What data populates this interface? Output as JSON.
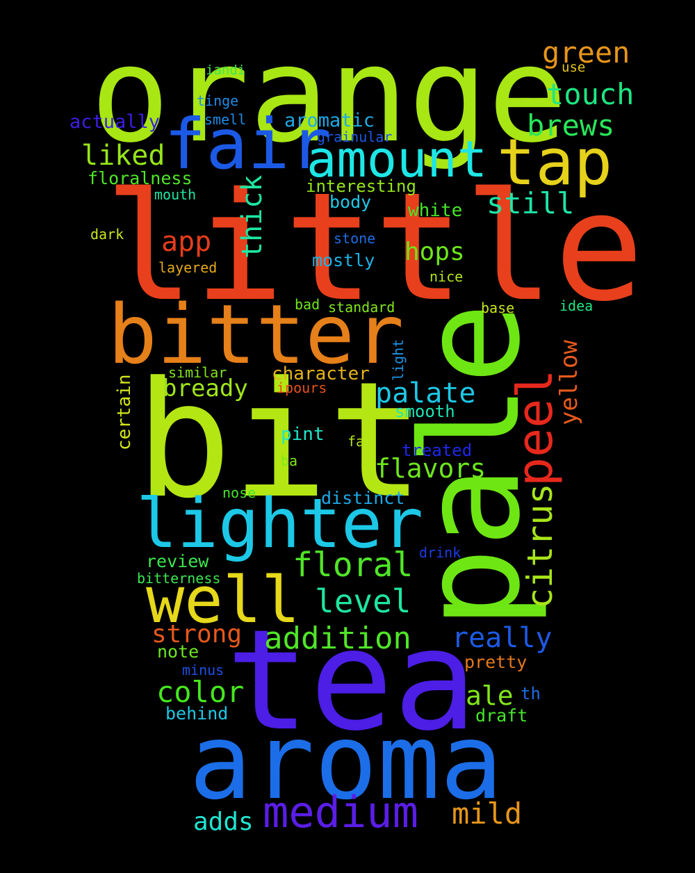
{
  "background": "#000000",
  "words": [
    {
      "text": "orange",
      "color": "#a8e614"
    },
    {
      "text": "little",
      "color": "#e8401c"
    },
    {
      "text": "bit",
      "color": "#b4e614"
    },
    {
      "text": "tea",
      "color": "#4c1ee6"
    },
    {
      "text": "pale",
      "color": "#6ee614"
    },
    {
      "text": "aroma",
      "color": "#1c6ee8"
    },
    {
      "text": "bitter",
      "color": "#e6801a"
    },
    {
      "text": "fair",
      "color": "#1c5ae6"
    },
    {
      "text": "amount",
      "color": "#1ee6e6"
    },
    {
      "text": "tap",
      "color": "#e6d21a"
    },
    {
      "text": "lighter",
      "color": "#1cc8e6"
    },
    {
      "text": "well",
      "color": "#e6d81a"
    },
    {
      "text": "medium",
      "color": "#5a1ee6"
    },
    {
      "text": "peel",
      "color": "#e6281c"
    },
    {
      "text": "citrus",
      "color": "#a8e61a"
    },
    {
      "text": "green",
      "color": "#e6961a"
    },
    {
      "text": "touch",
      "color": "#1ee682"
    },
    {
      "text": "brews",
      "color": "#28e65a"
    },
    {
      "text": "liked",
      "color": "#96e61a"
    },
    {
      "text": "still",
      "color": "#1ee6aa"
    },
    {
      "text": "app",
      "color": "#e63c1c"
    },
    {
      "text": "thick",
      "color": "#1ee6a0"
    },
    {
      "text": "hops",
      "color": "#6ee61a"
    },
    {
      "text": "floral",
      "color": "#50e628"
    },
    {
      "text": "level",
      "color": "#1ee6a0"
    },
    {
      "text": "palate",
      "color": "#1ec8e6"
    },
    {
      "text": "bready",
      "color": "#a0e61a"
    },
    {
      "text": "flavors",
      "color": "#6ee61e"
    },
    {
      "text": "addition",
      "color": "#50e628"
    },
    {
      "text": "strong",
      "color": "#e6581c"
    },
    {
      "text": "really",
      "color": "#1e5ae6"
    },
    {
      "text": "color",
      "color": "#46e61e"
    },
    {
      "text": "ale",
      "color": "#82e61a"
    },
    {
      "text": "mild",
      "color": "#e6961a"
    },
    {
      "text": "adds",
      "color": "#1ee6d2"
    },
    {
      "text": "yellow",
      "color": "#e65a1c"
    },
    {
      "text": "aromatic",
      "color": "#1eaae6"
    },
    {
      "text": "actually",
      "color": "#3c1ee6"
    },
    {
      "text": "floralness",
      "color": "#50e628"
    },
    {
      "text": "interesting",
      "color": "#96e61a"
    },
    {
      "text": "character",
      "color": "#e6b41a"
    },
    {
      "text": "certain",
      "color": "#d2e61a"
    },
    {
      "text": "white",
      "color": "#46e628"
    },
    {
      "text": "body",
      "color": "#1ec8e6"
    },
    {
      "text": "mostly",
      "color": "#1eb4e6"
    },
    {
      "text": "smooth",
      "color": "#1ee6b4"
    },
    {
      "text": "pint",
      "color": "#1ee6c8"
    },
    {
      "text": "treated",
      "color": "#1e28e6"
    },
    {
      "text": "distinct",
      "color": "#1eaae6"
    },
    {
      "text": "review",
      "color": "#3ce650"
    },
    {
      "text": "note",
      "color": "#6ee61e"
    },
    {
      "text": "pretty",
      "color": "#e6781a"
    },
    {
      "text": "behind",
      "color": "#1ec8e6"
    },
    {
      "text": "draft",
      "color": "#46e628"
    },
    {
      "text": "th",
      "color": "#1e6ee6"
    },
    {
      "text": "iandi",
      "color": "#3ce650"
    },
    {
      "text": "use",
      "color": "#e6c81a"
    },
    {
      "text": "tinge",
      "color": "#1e8ce6"
    },
    {
      "text": "smell",
      "color": "#1e8ce6"
    },
    {
      "text": "grainular",
      "color": "#1e5ae6"
    },
    {
      "text": "mouth",
      "color": "#1ee6a0"
    },
    {
      "text": "dark",
      "color": "#c8e61a"
    },
    {
      "text": "stone",
      "color": "#1e6ee6"
    },
    {
      "text": "layered",
      "color": "#e6aa1a"
    },
    {
      "text": "nice",
      "color": "#b4e61a"
    },
    {
      "text": "bad",
      "color": "#6ee61e"
    },
    {
      "text": "standard",
      "color": "#82e61a"
    },
    {
      "text": "base",
      "color": "#c8e61a"
    },
    {
      "text": "idea",
      "color": "#1ee682"
    },
    {
      "text": "light",
      "color": "#1e96e6"
    },
    {
      "text": "similar",
      "color": "#82e61a"
    },
    {
      "text": "ipours",
      "color": "#e6501c"
    },
    {
      "text": "far",
      "color": "#b4e61a"
    },
    {
      "text": "ba",
      "color": "#82e61a"
    },
    {
      "text": "nose",
      "color": "#46e628"
    },
    {
      "text": "drink",
      "color": "#1e3ce6"
    },
    {
      "text": "bitterness",
      "color": "#3ce650"
    },
    {
      "text": "minus",
      "color": "#1e50e6"
    }
  ]
}
